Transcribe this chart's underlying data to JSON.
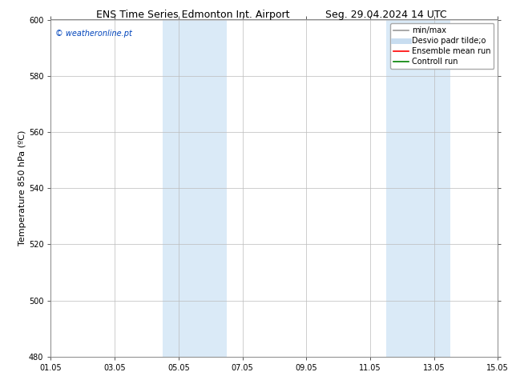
{
  "title_left": "ENS Time Series Edmonton Int. Airport",
  "title_right": "Seg. 29.04.2024 14 UTC",
  "ylabel": "Temperature 850 hPa (ºC)",
  "ylim": [
    480,
    600
  ],
  "yticks": [
    480,
    500,
    520,
    540,
    560,
    580,
    600
  ],
  "xtick_labels": [
    "01.05",
    "03.05",
    "05.05",
    "07.05",
    "09.05",
    "11.05",
    "13.05",
    "15.05"
  ],
  "xtick_positions": [
    0,
    2,
    4,
    6,
    8,
    10,
    12,
    14
  ],
  "xlim": [
    0,
    14
  ],
  "shaded_regions": [
    {
      "x_start": 3.5,
      "x_end": 5.5,
      "color": "#daeaf7"
    },
    {
      "x_start": 10.5,
      "x_end": 12.5,
      "color": "#daeaf7"
    }
  ],
  "legend_entries": [
    {
      "label": "min/max",
      "color": "#999999",
      "lw": 1.2
    },
    {
      "label": "Desvio padr tilde;o",
      "color": "#c8ddf0",
      "lw": 5
    },
    {
      "label": "Ensemble mean run",
      "color": "#ff0000",
      "lw": 1.2
    },
    {
      "label": "Controll run",
      "color": "#008000",
      "lw": 1.2
    }
  ],
  "watermark_text": "© weatheronline.pt",
  "watermark_color": "#0044bb",
  "background_color": "#ffffff",
  "plot_bg_color": "#ffffff",
  "grid_color": "#bbbbbb",
  "title_fontsize": 9,
  "tick_fontsize": 7,
  "ylabel_fontsize": 8,
  "legend_fontsize": 7,
  "watermark_fontsize": 7
}
